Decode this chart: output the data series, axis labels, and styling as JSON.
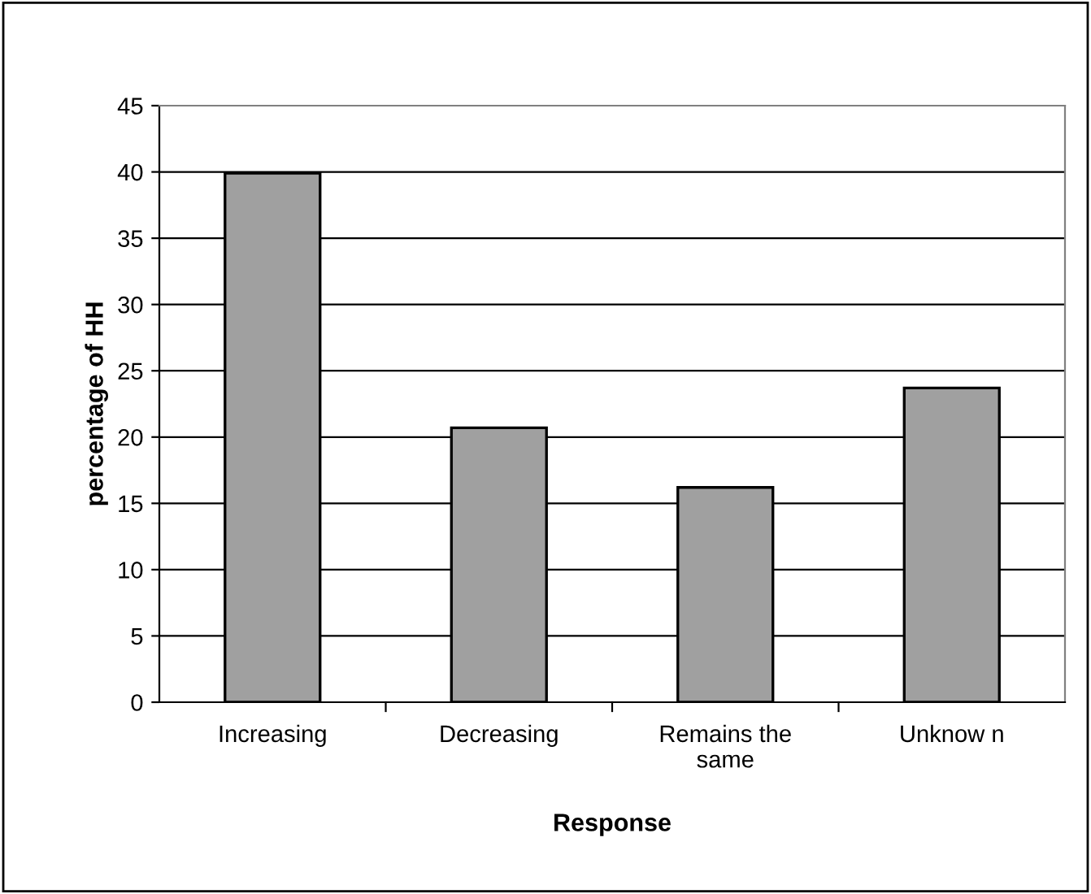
{
  "chart_data": {
    "type": "bar",
    "xlabel": "Response",
    "ylabel": "percentage of HH",
    "categories": [
      "Increasing",
      "Decreasing",
      "Remains the\nsame",
      "Unknow n"
    ],
    "values": [
      39.9,
      20.7,
      16.2,
      23.7
    ],
    "color": "#a0a0a0",
    "ylim": [
      0,
      45
    ],
    "yticks": [
      0,
      5,
      10,
      15,
      20,
      25,
      30,
      35,
      40,
      45
    ],
    "grid": "y",
    "legend": false
  }
}
